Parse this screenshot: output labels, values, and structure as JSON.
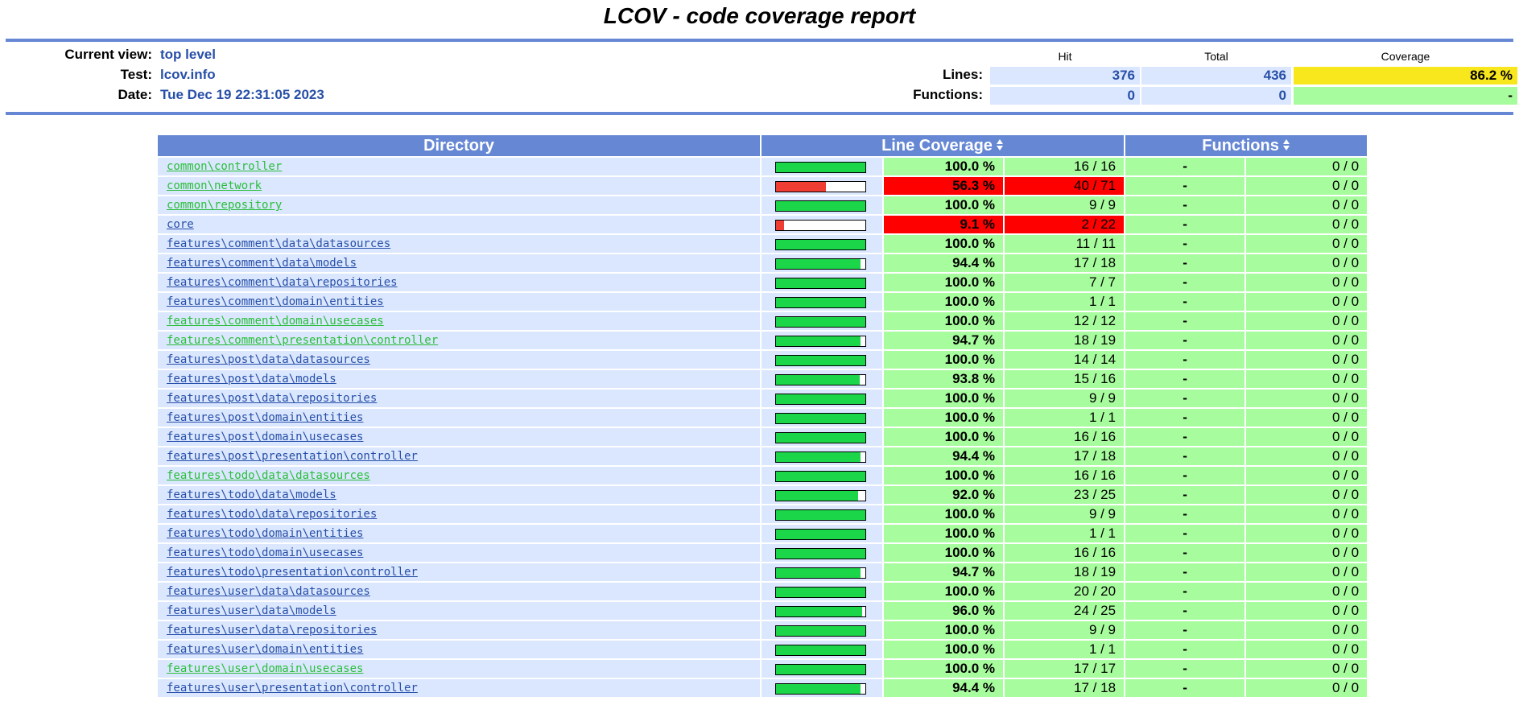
{
  "page_title": "LCOV - code coverage report",
  "colors": {
    "header_blue": "#6688d4",
    "row_bg": "#dae7fe",
    "good": "#a7fc9d",
    "bad": "#ff0000",
    "coverage_medium": "#f8e71c",
    "bar_good": "#1cd64a",
    "bar_bad": "#ef3d34",
    "link_visited": "#2bbe3a",
    "link_unvisited": "#284fa8"
  },
  "info": {
    "current_view_label": "Current view:",
    "current_view_value": "top level",
    "test_label": "Test:",
    "test_value": "lcov.info",
    "date_label": "Date:",
    "date_value": "Tue Dec 19 22:31:05 2023"
  },
  "summary": {
    "hit_header": "Hit",
    "total_header": "Total",
    "coverage_header": "Coverage",
    "lines_label": "Lines:",
    "lines_hit": "376",
    "lines_total": "436",
    "lines_coverage": "86.2 %",
    "functions_label": "Functions:",
    "functions_hit": "0",
    "functions_total": "0",
    "functions_coverage": "-"
  },
  "table": {
    "directory_header": "Directory",
    "line_coverage_header": "Line Coverage",
    "functions_header": "Functions",
    "sort_icon": "sort-icon",
    "rows": [
      {
        "dir": "common\\controller",
        "visited": true,
        "pct": "100.0 %",
        "ratio": "16 / 16",
        "fraction": 1.0,
        "status": "good",
        "fn_pct": "-",
        "fn_ratio": "0 / 0"
      },
      {
        "dir": "common\\network",
        "visited": true,
        "pct": "56.3 %",
        "ratio": "40 / 71",
        "fraction": 0.563,
        "status": "bad",
        "fn_pct": "-",
        "fn_ratio": "0 / 0"
      },
      {
        "dir": "common\\repository",
        "visited": true,
        "pct": "100.0 %",
        "ratio": "9 / 9",
        "fraction": 1.0,
        "status": "good",
        "fn_pct": "-",
        "fn_ratio": "0 / 0"
      },
      {
        "dir": "core",
        "visited": false,
        "pct": "9.1 %",
        "ratio": "2 / 22",
        "fraction": 0.091,
        "status": "bad",
        "fn_pct": "-",
        "fn_ratio": "0 / 0"
      },
      {
        "dir": "features\\comment\\data\\datasources",
        "visited": false,
        "pct": "100.0 %",
        "ratio": "11 / 11",
        "fraction": 1.0,
        "status": "good",
        "fn_pct": "-",
        "fn_ratio": "0 / 0"
      },
      {
        "dir": "features\\comment\\data\\models",
        "visited": false,
        "pct": "94.4 %",
        "ratio": "17 / 18",
        "fraction": 0.944,
        "status": "good",
        "fn_pct": "-",
        "fn_ratio": "0 / 0"
      },
      {
        "dir": "features\\comment\\data\\repositories",
        "visited": false,
        "pct": "100.0 %",
        "ratio": "7 / 7",
        "fraction": 1.0,
        "status": "good",
        "fn_pct": "-",
        "fn_ratio": "0 / 0"
      },
      {
        "dir": "features\\comment\\domain\\entities",
        "visited": false,
        "pct": "100.0 %",
        "ratio": "1 / 1",
        "fraction": 1.0,
        "status": "good",
        "fn_pct": "-",
        "fn_ratio": "0 / 0"
      },
      {
        "dir": "features\\comment\\domain\\usecases",
        "visited": true,
        "pct": "100.0 %",
        "ratio": "12 / 12",
        "fraction": 1.0,
        "status": "good",
        "fn_pct": "-",
        "fn_ratio": "0 / 0"
      },
      {
        "dir": "features\\comment\\presentation\\controller",
        "visited": true,
        "pct": "94.7 %",
        "ratio": "18 / 19",
        "fraction": 0.947,
        "status": "good",
        "fn_pct": "-",
        "fn_ratio": "0 / 0"
      },
      {
        "dir": "features\\post\\data\\datasources",
        "visited": false,
        "pct": "100.0 %",
        "ratio": "14 / 14",
        "fraction": 1.0,
        "status": "good",
        "fn_pct": "-",
        "fn_ratio": "0 / 0"
      },
      {
        "dir": "features\\post\\data\\models",
        "visited": false,
        "pct": "93.8 %",
        "ratio": "15 / 16",
        "fraction": 0.938,
        "status": "good",
        "fn_pct": "-",
        "fn_ratio": "0 / 0"
      },
      {
        "dir": "features\\post\\data\\repositories",
        "visited": false,
        "pct": "100.0 %",
        "ratio": "9 / 9",
        "fraction": 1.0,
        "status": "good",
        "fn_pct": "-",
        "fn_ratio": "0 / 0"
      },
      {
        "dir": "features\\post\\domain\\entities",
        "visited": false,
        "pct": "100.0 %",
        "ratio": "1 / 1",
        "fraction": 1.0,
        "status": "good",
        "fn_pct": "-",
        "fn_ratio": "0 / 0"
      },
      {
        "dir": "features\\post\\domain\\usecases",
        "visited": false,
        "pct": "100.0 %",
        "ratio": "16 / 16",
        "fraction": 1.0,
        "status": "good",
        "fn_pct": "-",
        "fn_ratio": "0 / 0"
      },
      {
        "dir": "features\\post\\presentation\\controller",
        "visited": false,
        "pct": "94.4 %",
        "ratio": "17 / 18",
        "fraction": 0.944,
        "status": "good",
        "fn_pct": "-",
        "fn_ratio": "0 / 0"
      },
      {
        "dir": "features\\todo\\data\\datasources",
        "visited": true,
        "pct": "100.0 %",
        "ratio": "16 / 16",
        "fraction": 1.0,
        "status": "good",
        "fn_pct": "-",
        "fn_ratio": "0 / 0"
      },
      {
        "dir": "features\\todo\\data\\models",
        "visited": false,
        "pct": "92.0 %",
        "ratio": "23 / 25",
        "fraction": 0.92,
        "status": "good",
        "fn_pct": "-",
        "fn_ratio": "0 / 0"
      },
      {
        "dir": "features\\todo\\data\\repositories",
        "visited": false,
        "pct": "100.0 %",
        "ratio": "9 / 9",
        "fraction": 1.0,
        "status": "good",
        "fn_pct": "-",
        "fn_ratio": "0 / 0"
      },
      {
        "dir": "features\\todo\\domain\\entities",
        "visited": false,
        "pct": "100.0 %",
        "ratio": "1 / 1",
        "fraction": 1.0,
        "status": "good",
        "fn_pct": "-",
        "fn_ratio": "0 / 0"
      },
      {
        "dir": "features\\todo\\domain\\usecases",
        "visited": false,
        "pct": "100.0 %",
        "ratio": "16 / 16",
        "fraction": 1.0,
        "status": "good",
        "fn_pct": "-",
        "fn_ratio": "0 / 0"
      },
      {
        "dir": "features\\todo\\presentation\\controller",
        "visited": false,
        "pct": "94.7 %",
        "ratio": "18 / 19",
        "fraction": 0.947,
        "status": "good",
        "fn_pct": "-",
        "fn_ratio": "0 / 0"
      },
      {
        "dir": "features\\user\\data\\datasources",
        "visited": false,
        "pct": "100.0 %",
        "ratio": "20 / 20",
        "fraction": 1.0,
        "status": "good",
        "fn_pct": "-",
        "fn_ratio": "0 / 0"
      },
      {
        "dir": "features\\user\\data\\models",
        "visited": false,
        "pct": "96.0 %",
        "ratio": "24 / 25",
        "fraction": 0.96,
        "status": "good",
        "fn_pct": "-",
        "fn_ratio": "0 / 0"
      },
      {
        "dir": "features\\user\\data\\repositories",
        "visited": false,
        "pct": "100.0 %",
        "ratio": "9 / 9",
        "fraction": 1.0,
        "status": "good",
        "fn_pct": "-",
        "fn_ratio": "0 / 0"
      },
      {
        "dir": "features\\user\\domain\\entities",
        "visited": false,
        "pct": "100.0 %",
        "ratio": "1 / 1",
        "fraction": 1.0,
        "status": "good",
        "fn_pct": "-",
        "fn_ratio": "0 / 0"
      },
      {
        "dir": "features\\user\\domain\\usecases",
        "visited": true,
        "pct": "100.0 %",
        "ratio": "17 / 17",
        "fraction": 1.0,
        "status": "good",
        "fn_pct": "-",
        "fn_ratio": "0 / 0"
      },
      {
        "dir": "features\\user\\presentation\\controller",
        "visited": false,
        "pct": "94.4 %",
        "ratio": "17 / 18",
        "fraction": 0.944,
        "status": "good",
        "fn_pct": "-",
        "fn_ratio": "0 / 0"
      }
    ]
  }
}
